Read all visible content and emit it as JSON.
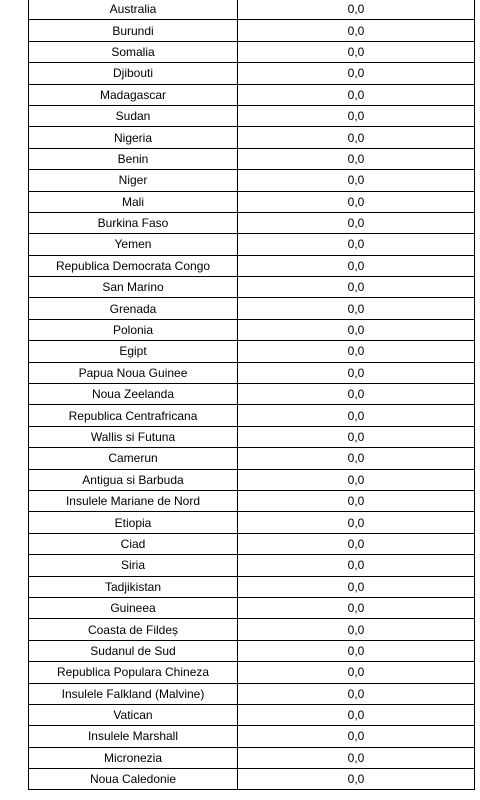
{
  "table": {
    "rows": [
      {
        "country": "Australia",
        "value": "0,0"
      },
      {
        "country": "Burundi",
        "value": "0,0"
      },
      {
        "country": "Somalia",
        "value": "0,0"
      },
      {
        "country": "Djibouti",
        "value": "0,0"
      },
      {
        "country": "Madagascar",
        "value": "0,0"
      },
      {
        "country": "Sudan",
        "value": "0,0"
      },
      {
        "country": "Nigeria",
        "value": "0,0"
      },
      {
        "country": "Benin",
        "value": "0,0"
      },
      {
        "country": "Niger",
        "value": "0,0"
      },
      {
        "country": "Mali",
        "value": "0,0"
      },
      {
        "country": "Burkina Faso",
        "value": "0,0"
      },
      {
        "country": "Yemen",
        "value": "0,0"
      },
      {
        "country": "Republica Democrata Congo",
        "value": "0,0"
      },
      {
        "country": "San Marino",
        "value": "0,0"
      },
      {
        "country": "Grenada",
        "value": "0,0"
      },
      {
        "country": "Polonia",
        "value": "0,0"
      },
      {
        "country": "Egipt",
        "value": "0,0"
      },
      {
        "country": "Papua Noua Guinee",
        "value": "0,0"
      },
      {
        "country": "Noua Zeelanda",
        "value": "0,0"
      },
      {
        "country": "Republica Centrafricana",
        "value": "0,0"
      },
      {
        "country": "Wallis si Futuna",
        "value": "0,0"
      },
      {
        "country": "Camerun",
        "value": "0,0"
      },
      {
        "country": "Antigua si Barbuda",
        "value": "0,0"
      },
      {
        "country": "Insulele Mariane de Nord",
        "value": "0,0"
      },
      {
        "country": "Etiopia",
        "value": "0,0"
      },
      {
        "country": "Ciad",
        "value": "0,0"
      },
      {
        "country": "Siria",
        "value": "0,0"
      },
      {
        "country": "Tadjikistan",
        "value": "0,0"
      },
      {
        "country": "Guineea",
        "value": "0,0"
      },
      {
        "country": "Coasta de Fildeș",
        "value": "0,0"
      },
      {
        "country": "Sudanul de Sud",
        "value": "0,0"
      },
      {
        "country": "Republica Populara Chineza",
        "value": "0,0"
      },
      {
        "country": "Insulele Falkland (Malvine)",
        "value": "0,0"
      },
      {
        "country": "Vatican",
        "value": "0,0"
      },
      {
        "country": "Insulele Marshall",
        "value": "0,0"
      },
      {
        "country": "Micronezia",
        "value": "0,0"
      },
      {
        "country": "Noua Caledonie",
        "value": "0,0"
      }
    ]
  }
}
